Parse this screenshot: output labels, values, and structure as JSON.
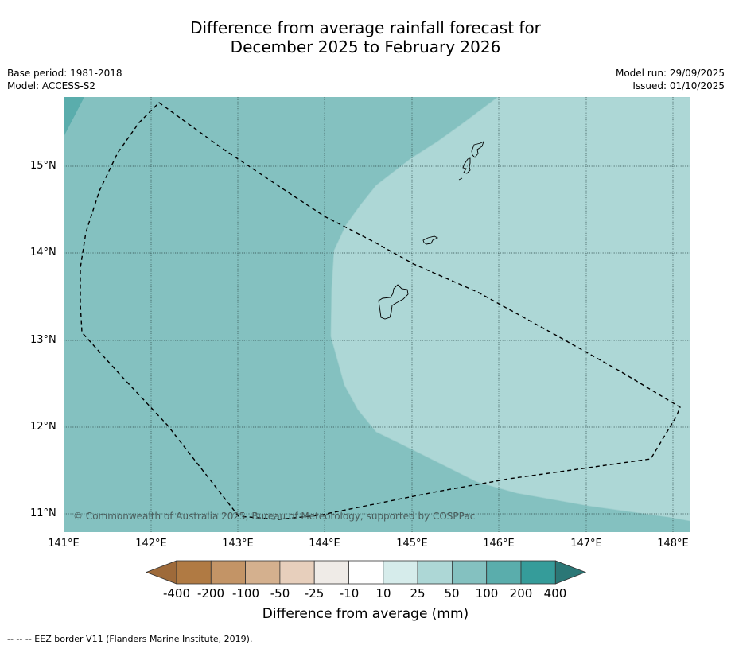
{
  "title": {
    "line1": "Difference from average rainfall forecast for",
    "line2": "December 2025 to February 2026"
  },
  "meta_left": {
    "base_period": "Base period: 1981-2018",
    "model": "Model: ACCESS-S2"
  },
  "meta_right": {
    "model_run": "Model run: 29/09/2025",
    "issued": "Issued: 01/10/2025"
  },
  "map": {
    "lon_range": [
      141.0,
      148.2
    ],
    "lat_range": [
      10.8,
      15.8
    ],
    "lat_ticks": [
      "15°N",
      "14°N",
      "13°N",
      "12°N",
      "11°N"
    ],
    "lon_ticks": [
      "141°E",
      "142°E",
      "143°E",
      "144°E",
      "145°E",
      "146°E",
      "147°E",
      "148°E"
    ],
    "copyright": "© Commonwealth of Australia 2025, Bureau of Meteorology, supported by COSPPac",
    "region_colors": {
      "band_50_100": "#84c1c0",
      "band_25_50": "#add7d6",
      "band_100_200": "#5aadac"
    }
  },
  "colorbar": {
    "labels": [
      "-400",
      "-200",
      "-100",
      "-50",
      "-25",
      "-10",
      "10",
      "25",
      "50",
      "100",
      "200",
      "400"
    ],
    "colors": [
      "#9e6a3a",
      "#b07a43",
      "#c39466",
      "#d4b08e",
      "#e7cfbc",
      "#efebe7",
      "#ffffff",
      "#d6eceb",
      "#add7d6",
      "#84c1c0",
      "#5aadac",
      "#359c9a",
      "#2b7776"
    ],
    "title": "Difference from average (mm)"
  },
  "footnote": "--  --  -- EEZ border V11 (Flanders Marine Institute, 2019)."
}
